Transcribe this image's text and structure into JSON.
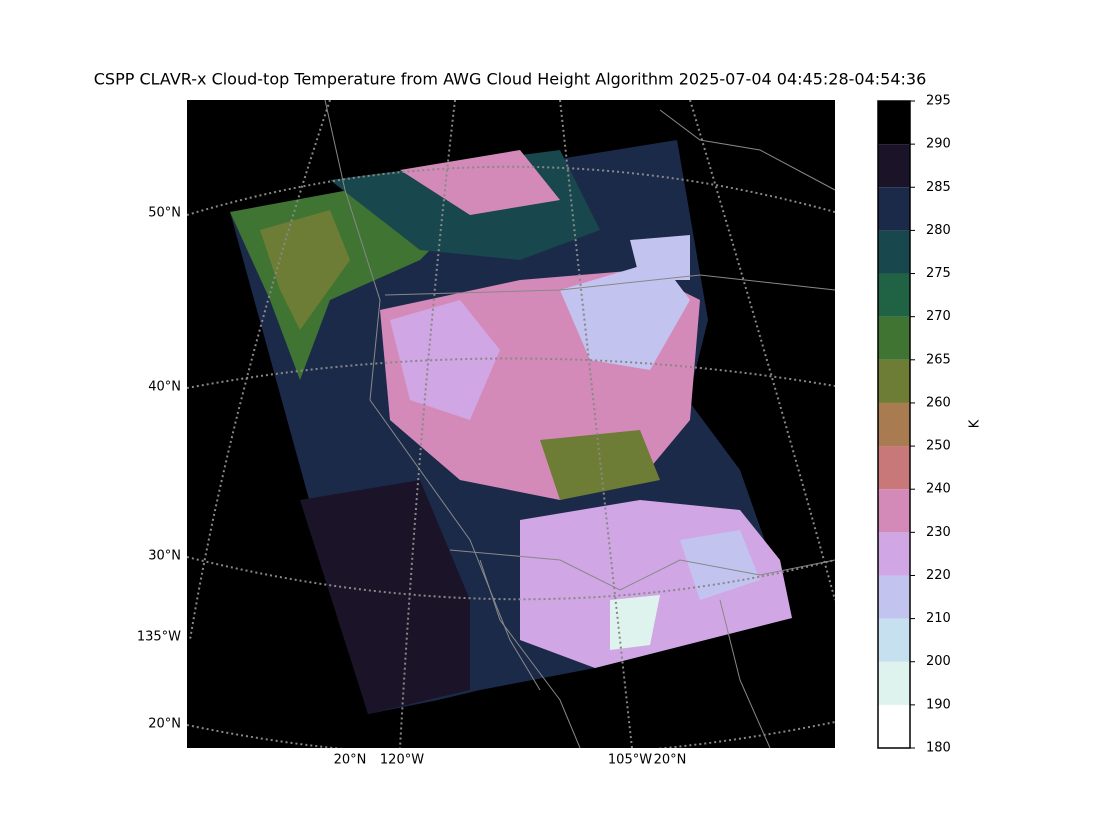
{
  "title": "CSPP CLAVR-x Cloud-top Temperature from AWG Cloud Height Algorithm 2025-07-04 04:45:28-04:54:36",
  "map": {
    "left_labels": [
      "50°N",
      "40°N",
      "30°N",
      "135°W",
      "20°N"
    ],
    "bottom_labels": [
      "20°N",
      "120°W",
      "105°W",
      "20°N"
    ]
  },
  "colorbar": {
    "label": "K",
    "ticks": [
      180,
      190,
      200,
      210,
      220,
      230,
      240,
      250,
      260,
      265,
      270,
      275,
      280,
      285,
      290,
      295
    ],
    "colors": [
      "#ffffff",
      "#dff3ee",
      "#c6e0f0",
      "#c3c3f0",
      "#d1a6e4",
      "#d48ab8",
      "#c87878",
      "#a87b50",
      "#6e7d35",
      "#3f7432",
      "#1f6244",
      "#18474e",
      "#1c2a4a",
      "#1b1428",
      "#000000"
    ]
  }
}
